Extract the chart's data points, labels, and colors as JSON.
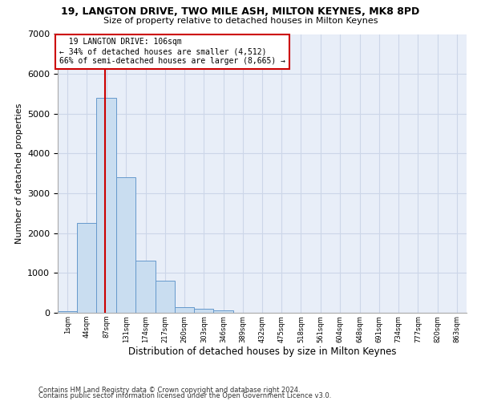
{
  "title1": "19, LANGTON DRIVE, TWO MILE ASH, MILTON KEYNES, MK8 8PD",
  "title2": "Size of property relative to detached houses in Milton Keynes",
  "xlabel": "Distribution of detached houses by size in Milton Keynes",
  "ylabel": "Number of detached properties",
  "footnote1": "Contains HM Land Registry data © Crown copyright and database right 2024.",
  "footnote2": "Contains public sector information licensed under the Open Government Licence v3.0.",
  "bar_color": "#c9ddf0",
  "bar_edge_color": "#6699cc",
  "grid_color": "#ccd6e8",
  "background_color": "#e8eef8",
  "annotation_box_color": "#cc0000",
  "vline_color": "#cc0000",
  "bins": [
    1,
    44,
    87,
    131,
    174,
    217,
    260,
    303,
    346,
    389,
    432,
    475,
    518,
    561,
    604,
    648,
    691,
    734,
    777,
    820,
    863
  ],
  "values": [
    50,
    2250,
    5400,
    3400,
    1300,
    800,
    150,
    100,
    60,
    10,
    5,
    2,
    1,
    0,
    0,
    0,
    0,
    0,
    0,
    0
  ],
  "property_size": 106,
  "property_name": "19 LANGTON DRIVE: 106sqm",
  "pct_smaller": 34,
  "n_smaller": 4512,
  "pct_larger": 66,
  "n_larger": 8665,
  "ylim": [
    0,
    7000
  ],
  "yticks": [
    0,
    1000,
    2000,
    3000,
    4000,
    5000,
    6000,
    7000
  ]
}
